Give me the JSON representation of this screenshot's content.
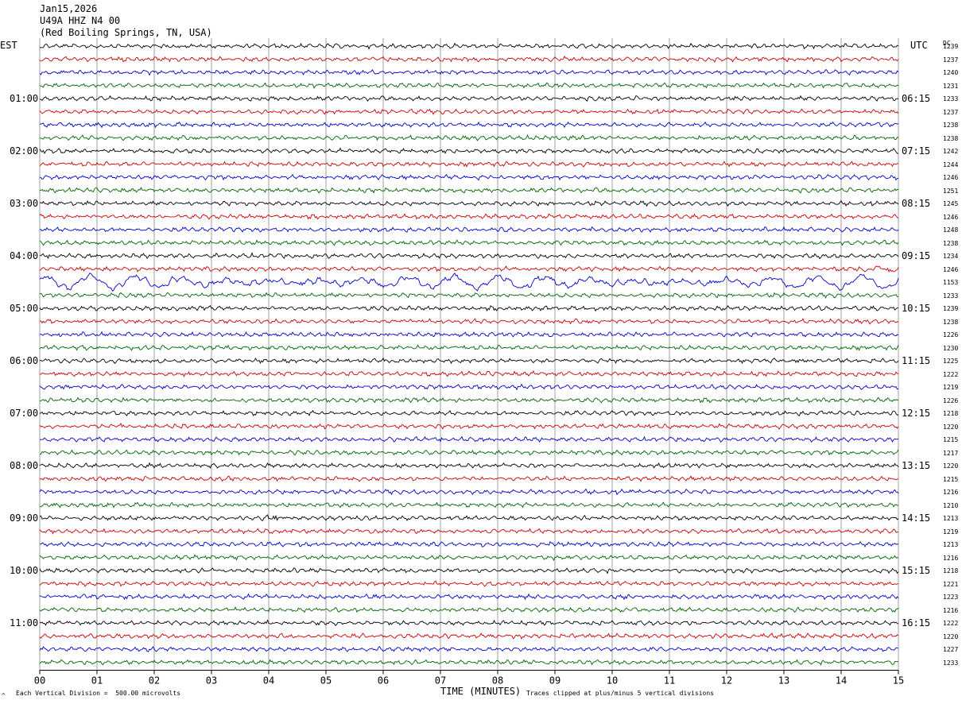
{
  "header": {
    "date": "Jan15,2026",
    "station": "U49A HHZ N4 00",
    "location": "(Red Boiling Springs, TN, USA)"
  },
  "left_tz": "EST",
  "right_tz": "UTC",
  "right_col_header": "DC",
  "footer": {
    "xlabel": "TIME (MINUTES)",
    "scale_note": "Each Vertical Division =  500.00 microvolts",
    "clip_note": "Traces clipped at plus/minus 5 vertical divisions",
    "corner_mark": "^"
  },
  "chart_data": {
    "type": "line",
    "title": "U49A HHZ N4 00 (Red Boiling Springs, TN, USA) Jan15,2026",
    "xlabel": "TIME (MINUTES)",
    "x_range": [
      0,
      15
    ],
    "x_ticks": [
      "00",
      "01",
      "02",
      "03",
      "04",
      "05",
      "06",
      "07",
      "08",
      "09",
      "10",
      "11",
      "12",
      "13",
      "14",
      "15"
    ],
    "trace_colors": [
      "#000000",
      "#cc0000",
      "#0000cc",
      "#006600"
    ],
    "left_hour_labels": [
      "01:00",
      "02:00",
      "03:00",
      "04:00",
      "05:00",
      "06:00",
      "07:00",
      "08:00",
      "09:00",
      "10:00",
      "11:00"
    ],
    "right_hour_labels": [
      "06:15",
      "07:15",
      "08:15",
      "09:15",
      "10:15",
      "11:15",
      "12:15",
      "13:15",
      "14:15",
      "15:15",
      "16:15"
    ],
    "dc_offsets": [
      1239,
      1237,
      1240,
      1231,
      1233,
      1237,
      1238,
      1238,
      1242,
      1244,
      1246,
      1251,
      1245,
      1246,
      1248,
      1238,
      1234,
      1246,
      1153,
      1233,
      1239,
      1238,
      1226,
      1230,
      1225,
      1222,
      1219,
      1226,
      1218,
      1220,
      1215,
      1217,
      1220,
      1215,
      1216,
      1210,
      1213,
      1219,
      1213,
      1216,
      1218,
      1221,
      1223,
      1216,
      1222,
      1220,
      1227,
      1233
    ],
    "events": [
      {
        "trace": 18,
        "description": "large long-period oscillations",
        "x_start": 0.0,
        "x_end": 15.0,
        "amplitude_div": 1.5
      },
      {
        "trace": 17,
        "description": "increased amplitude late in trace",
        "x_start": 13.8,
        "x_end": 15.0,
        "amplitude_div": 0.6
      },
      {
        "trace": 36,
        "description": "local event burst",
        "x_start": 3.7,
        "x_end": 4.6,
        "amplitude_div": 0.7
      }
    ]
  }
}
